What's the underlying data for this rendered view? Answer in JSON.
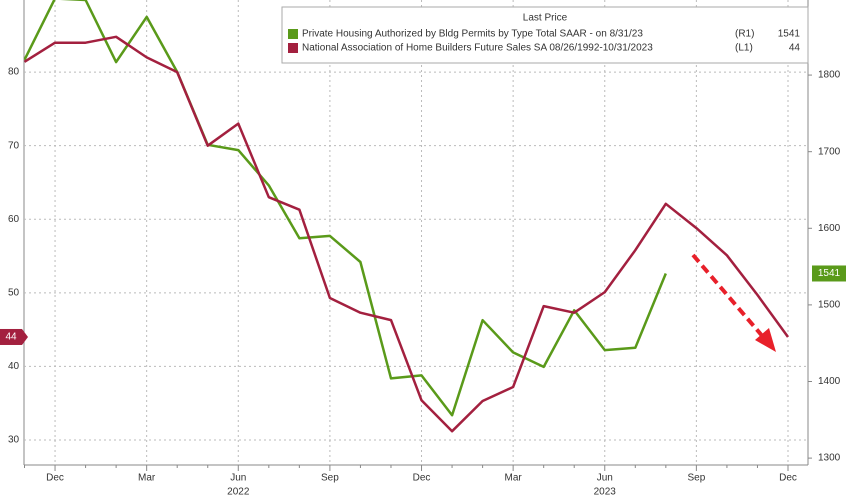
{
  "chart_data": {
    "type": "line",
    "legend_title": "Last Price",
    "categories": [
      null,
      "Dec",
      null,
      null,
      "Mar",
      null,
      null,
      "Jun",
      null,
      null,
      "Sep",
      null,
      null,
      "Dec",
      null,
      null,
      "Mar",
      null,
      null,
      "Jun",
      null,
      null,
      "Sep",
      null,
      null,
      "Dec"
    ],
    "year_labels": [
      {
        "label": "2022",
        "category_index": 7
      },
      {
        "label": "2023",
        "category_index": 19
      }
    ],
    "series": [
      {
        "name": "Private Housing Authorized by Bldg Permits by Type Total SAAR -  on 8/31/23",
        "axis_tag": "(R1)",
        "last_value": 1541,
        "color": "#5a9a1a",
        "axis": "y2",
        "values": [
          1820,
          1900,
          1898,
          1817,
          1876,
          1804,
          1709,
          1702,
          1656,
          1587,
          1590,
          1556,
          1404,
          1408,
          1356,
          1480,
          1438,
          1419,
          1493,
          1441,
          1444,
          1541,
          null,
          null,
          null,
          null
        ]
      },
      {
        "name": "National Association of Home Builders Future Sales SA 08/26/1992-10/31/2023",
        "axis_tag": "(L1)",
        "last_value": 44,
        "color": "#a3203f",
        "axis": "y",
        "values": [
          81.4,
          84,
          84,
          84.8,
          82,
          80,
          70,
          73,
          63,
          61.3,
          49.3,
          47.3,
          46.3,
          35.4,
          31.2,
          35.3,
          37.2,
          48.2,
          47.3,
          50.1,
          55.8,
          62.1,
          58.8,
          55.1,
          49.7,
          44
        ]
      }
    ],
    "ylim": [
      26.6,
      89.8
    ],
    "yticks": [
      30,
      40,
      50,
      60,
      70,
      80
    ],
    "y2lim": [
      1291,
      1898
    ],
    "y2ticks": [
      1300,
      1400,
      1500,
      1600,
      1700,
      1800
    ],
    "grid": true
  }
}
